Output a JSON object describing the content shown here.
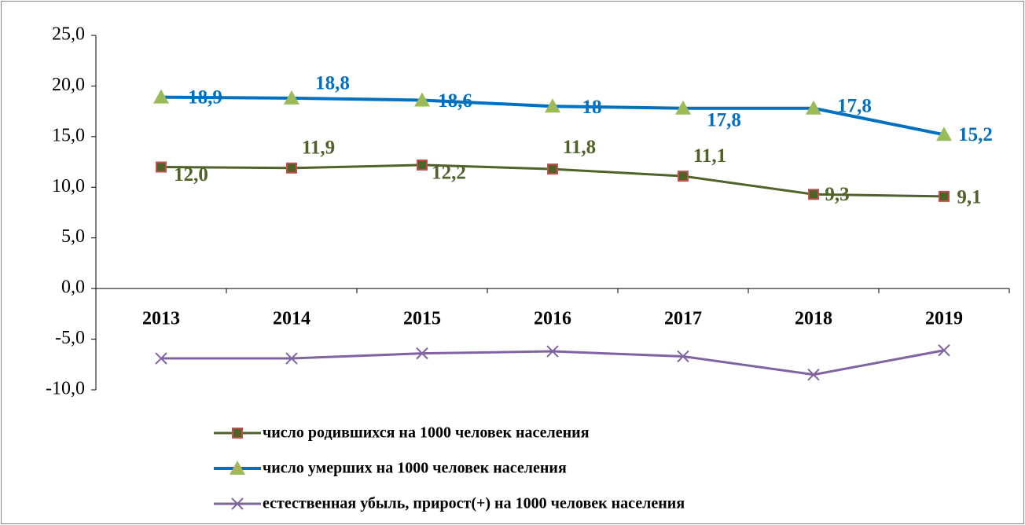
{
  "chart_data": {
    "type": "line",
    "categories": [
      "2013",
      "2014",
      "2015",
      "2016",
      "2017",
      "2018",
      "2019"
    ],
    "series": [
      {
        "name": "число родившихся на 1000 человек населения",
        "color": "#4f6228",
        "marker": "square",
        "values": [
          12.0,
          11.9,
          12.2,
          11.8,
          11.1,
          9.3,
          9.1
        ],
        "value_labels": [
          "12,0",
          "11,9",
          "12,2",
          "11,8",
          "11,1",
          "9,3",
          "9,1"
        ]
      },
      {
        "name": "число умерших на 1000 человек населения",
        "color": "#0070c0",
        "marker": "triangle",
        "values": [
          18.9,
          18.8,
          18.6,
          18,
          17.8,
          17.8,
          15.2
        ],
        "value_labels": [
          "18,9",
          "18,8",
          "18,6",
          "18",
          "17,8",
          "17,8",
          "15,2"
        ]
      },
      {
        "name": "естественная убыль, прирост(+) на 1000 человек населения",
        "color": "#8064a2",
        "marker": "x",
        "values": [
          -6.9,
          -6.9,
          -6.4,
          -6.2,
          -6.7,
          -8.5,
          -6.1
        ]
      }
    ],
    "ylim": [
      -10,
      25
    ],
    "yticks": [
      {
        "value": -10,
        "label": "-10,0"
      },
      {
        "value": -5,
        "label": "-5,0"
      },
      {
        "value": 0,
        "label": "0,0"
      },
      {
        "value": 5,
        "label": "5,0"
      },
      {
        "value": 10,
        "label": "10,0"
      },
      {
        "value": 15,
        "label": "15,0"
      },
      {
        "value": 20,
        "label": "20,0"
      },
      {
        "value": 25,
        "label": "25,0"
      }
    ],
    "legend": "bottom"
  }
}
